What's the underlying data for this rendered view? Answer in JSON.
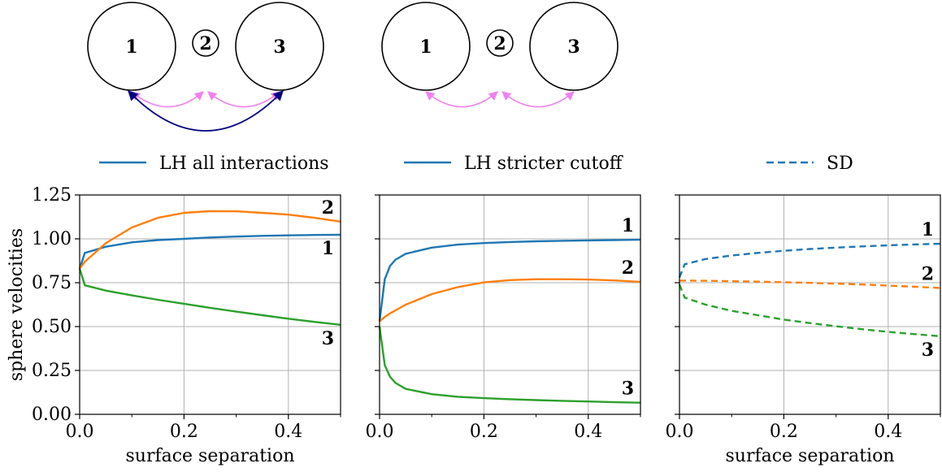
{
  "colors": {
    "blue": "#1f77b4",
    "orange": "#ff7f0e",
    "green": "#2ca02c",
    "arc_pink": "#ee82ee",
    "arc_navy": "#000080",
    "grid": "#b0b0b0"
  },
  "legend": [
    {
      "label": "LH all interactions",
      "style": "solid"
    },
    {
      "label": "LH stricter cutoff",
      "style": "solid"
    },
    {
      "label": "SD",
      "style": "dashed"
    }
  ],
  "diagrams": [
    {
      "spheres": [
        "1",
        "2",
        "3"
      ],
      "arcs": [
        "1-2",
        "2-3",
        "1-3"
      ]
    },
    {
      "spheres": [
        "1",
        "2",
        "3"
      ],
      "arcs": [
        "1-2",
        "2-3"
      ]
    }
  ],
  "chart_data": [
    {
      "type": "line",
      "xlabel": "surface separation",
      "ylabel": "sphere velocities",
      "xlim": [
        0,
        0.5
      ],
      "ylim": [
        0,
        1.25
      ],
      "xticks": [
        "0.0",
        "0.2",
        "0.4"
      ],
      "yticks": [
        "0.00",
        "0.25",
        "0.50",
        "0.75",
        "1.00",
        "1.25"
      ],
      "grid": true,
      "line_style": "solid",
      "series": [
        {
          "name": "1",
          "color": "blue",
          "x": [
            0,
            0.01,
            0.05,
            0.1,
            0.15,
            0.2,
            0.25,
            0.3,
            0.35,
            0.4,
            0.45,
            0.5
          ],
          "y": [
            0.83,
            0.92,
            0.955,
            0.98,
            0.993,
            1.0,
            1.008,
            1.013,
            1.017,
            1.02,
            1.022,
            1.023
          ]
        },
        {
          "name": "2",
          "color": "orange",
          "x": [
            0,
            0.01,
            0.05,
            0.1,
            0.15,
            0.2,
            0.25,
            0.3,
            0.35,
            0.4,
            0.45,
            0.5
          ],
          "y": [
            0.83,
            0.87,
            0.975,
            1.065,
            1.12,
            1.148,
            1.158,
            1.157,
            1.148,
            1.138,
            1.12,
            1.098
          ]
        },
        {
          "name": "3",
          "color": "green",
          "x": [
            0,
            0.01,
            0.05,
            0.1,
            0.15,
            0.2,
            0.25,
            0.3,
            0.35,
            0.4,
            0.45,
            0.5
          ],
          "y": [
            0.83,
            0.735,
            0.705,
            0.678,
            0.653,
            0.63,
            0.607,
            0.585,
            0.565,
            0.545,
            0.527,
            0.51
          ]
        }
      ],
      "label_positions": [
        "below-right",
        "above-right",
        "below-right"
      ]
    },
    {
      "type": "line",
      "xlabel": "",
      "ylabel": "",
      "xlim": [
        0,
        0.5
      ],
      "ylim": [
        0,
        1.25
      ],
      "xticks": [
        "0.0",
        "0.2",
        "0.4"
      ],
      "yticks": [],
      "grid": true,
      "line_style": "solid",
      "series": [
        {
          "name": "1",
          "color": "blue",
          "x": [
            0,
            0.01,
            0.02,
            0.03,
            0.05,
            0.1,
            0.15,
            0.2,
            0.25,
            0.3,
            0.35,
            0.4,
            0.45,
            0.5
          ],
          "y": [
            0.53,
            0.77,
            0.845,
            0.88,
            0.915,
            0.95,
            0.967,
            0.976,
            0.982,
            0.986,
            0.989,
            0.991,
            0.993,
            0.995
          ]
        },
        {
          "name": "2",
          "color": "orange",
          "x": [
            0,
            0.01,
            0.02,
            0.05,
            0.1,
            0.15,
            0.2,
            0.25,
            0.3,
            0.35,
            0.4,
            0.45,
            0.5
          ],
          "y": [
            0.53,
            0.555,
            0.575,
            0.625,
            0.685,
            0.725,
            0.752,
            0.765,
            0.77,
            0.77,
            0.768,
            0.763,
            0.755
          ]
        },
        {
          "name": "3",
          "color": "green",
          "x": [
            0,
            0.01,
            0.02,
            0.03,
            0.05,
            0.1,
            0.15,
            0.2,
            0.25,
            0.3,
            0.35,
            0.4,
            0.45,
            0.5
          ],
          "y": [
            0.5,
            0.28,
            0.215,
            0.18,
            0.145,
            0.115,
            0.1,
            0.092,
            0.086,
            0.081,
            0.077,
            0.073,
            0.069,
            0.066
          ]
        }
      ],
      "label_positions": [
        "above-right",
        "above-right",
        "above-right"
      ]
    },
    {
      "type": "line",
      "xlabel": "surface separation",
      "ylabel": "",
      "xlim": [
        0,
        0.5
      ],
      "ylim": [
        0,
        1.25
      ],
      "xticks": [
        "0.0",
        "0.2",
        "0.4"
      ],
      "yticks": [],
      "grid": true,
      "line_style": "dashed",
      "series": [
        {
          "name": "1",
          "color": "blue",
          "x": [
            0,
            0.01,
            0.05,
            0.1,
            0.15,
            0.2,
            0.25,
            0.3,
            0.35,
            0.4,
            0.45,
            0.5
          ],
          "y": [
            0.78,
            0.855,
            0.885,
            0.905,
            0.92,
            0.932,
            0.942,
            0.95,
            0.957,
            0.963,
            0.968,
            0.972
          ]
        },
        {
          "name": "2",
          "color": "orange",
          "x": [
            0,
            0.05,
            0.1,
            0.15,
            0.2,
            0.25,
            0.3,
            0.35,
            0.4,
            0.45,
            0.5
          ],
          "y": [
            0.762,
            0.761,
            0.759,
            0.756,
            0.753,
            0.749,
            0.745,
            0.74,
            0.734,
            0.727,
            0.72
          ]
        },
        {
          "name": "3",
          "color": "green",
          "x": [
            0,
            0.01,
            0.05,
            0.1,
            0.15,
            0.2,
            0.25,
            0.3,
            0.35,
            0.4,
            0.45,
            0.5
          ],
          "y": [
            0.74,
            0.665,
            0.625,
            0.59,
            0.565,
            0.54,
            0.52,
            0.502,
            0.485,
            0.47,
            0.457,
            0.445
          ]
        }
      ],
      "label_positions": [
        "above-right",
        "above-right",
        "below-right"
      ]
    }
  ]
}
